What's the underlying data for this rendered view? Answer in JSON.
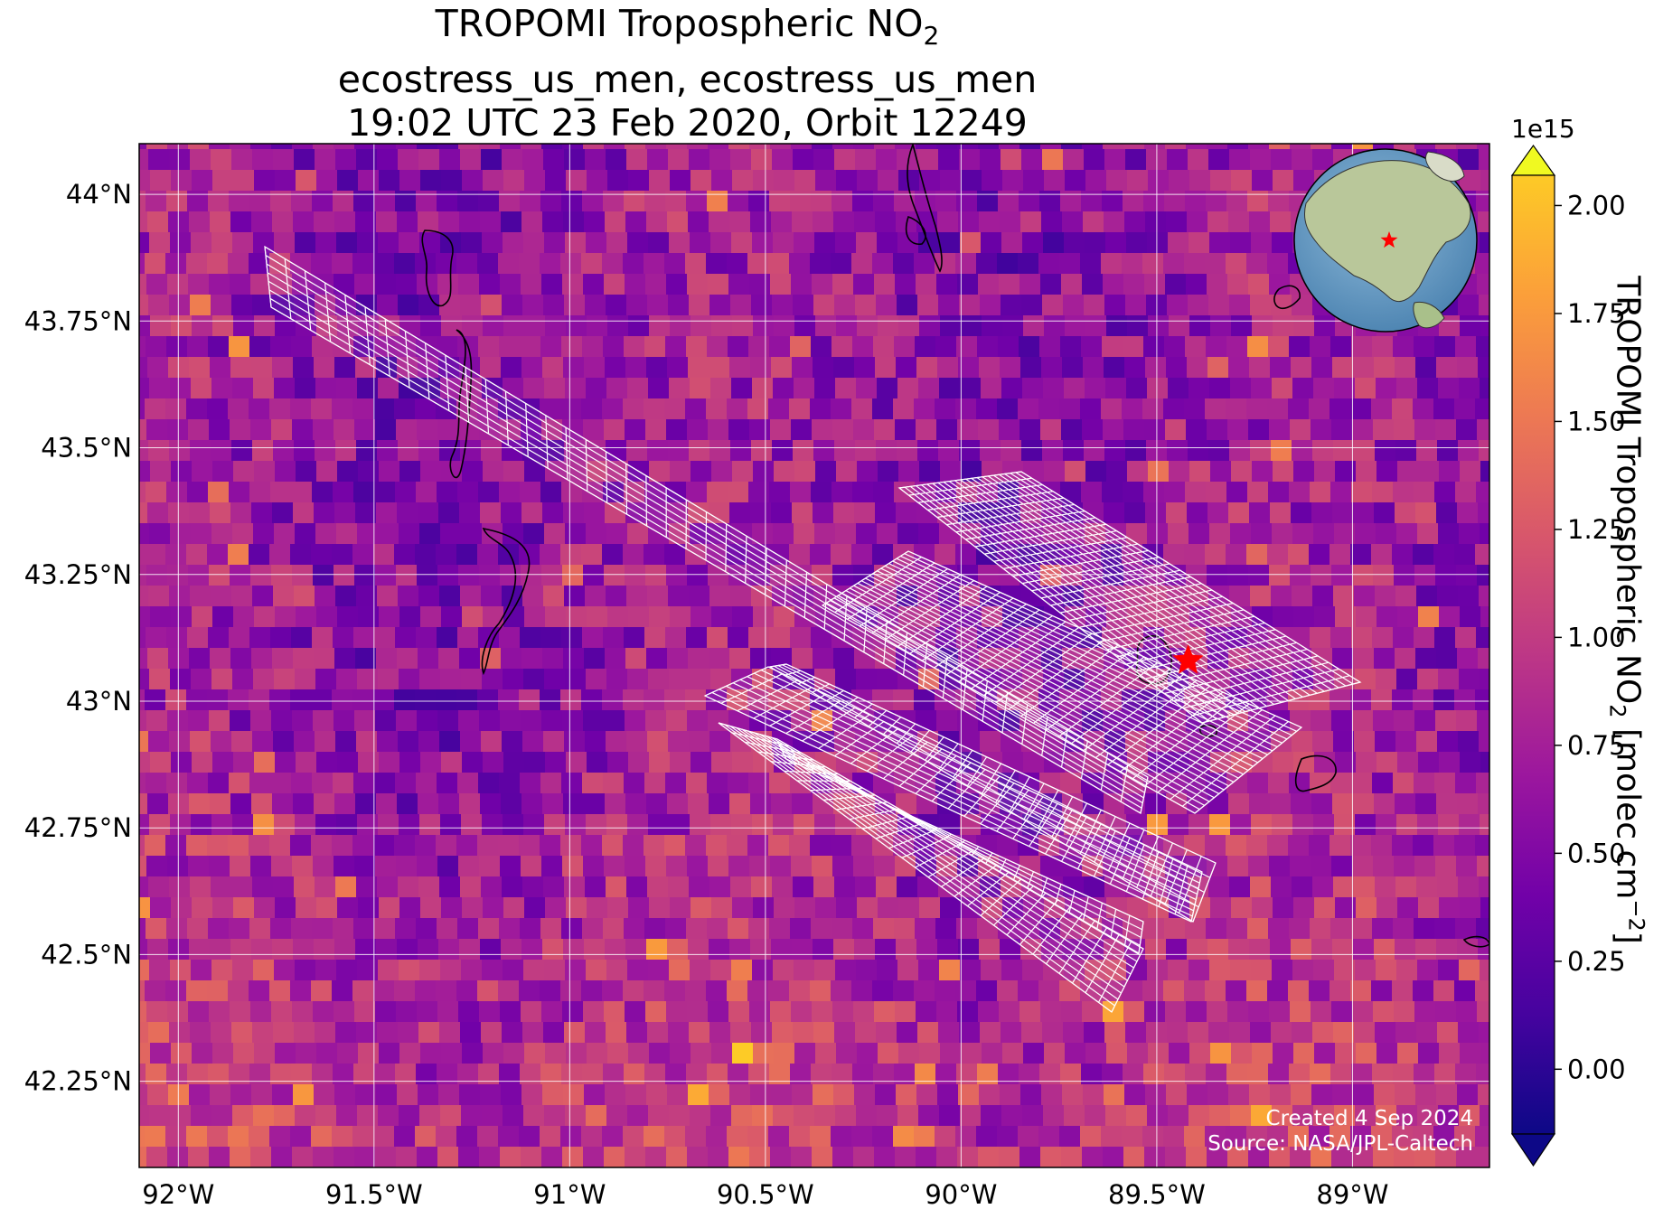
{
  "title": {
    "line1_text": "TROPOMI Tropospheric NO",
    "line1_sub": "2",
    "line2": "ecostress_us_men, ecostress_us_men",
    "line3": "19:02 UTC 23 Feb 2020, Orbit 12249"
  },
  "map": {
    "lon_range": [
      -92.1,
      -88.65
    ],
    "lat_range": [
      42.08,
      44.1
    ],
    "gridline_color": "#ffffff",
    "grid": true,
    "x_ticks": [
      {
        "value": -92.0,
        "label": "92°W"
      },
      {
        "value": -91.5,
        "label": "91.5°W"
      },
      {
        "value": -91.0,
        "label": "91°W"
      },
      {
        "value": -90.5,
        "label": "90.5°W"
      },
      {
        "value": -90.0,
        "label": "90°W"
      },
      {
        "value": -89.5,
        "label": "89.5°W"
      },
      {
        "value": -89.0,
        "label": "89°W"
      }
    ],
    "y_ticks": [
      {
        "value": 44.0,
        "label": "44°N"
      },
      {
        "value": 43.75,
        "label": "43.75°N"
      },
      {
        "value": 43.5,
        "label": "43.5°N"
      },
      {
        "value": 43.25,
        "label": "43.25°N"
      },
      {
        "value": 43.0,
        "label": "43°N"
      },
      {
        "value": 42.75,
        "label": "42.75°N"
      },
      {
        "value": 42.5,
        "label": "42.5°N"
      },
      {
        "value": 42.25,
        "label": "42.25°N"
      }
    ],
    "site_marker": {
      "lon": -89.42,
      "lat": 43.08,
      "color": "#ff0000",
      "icon": "star-icon"
    },
    "inset_globe": {
      "icon": "globe-icon",
      "ocean_color": "#6b9fc7",
      "land_color": "#b9c79a"
    },
    "swath_outline_color": "#ffffff",
    "colormap": "plasma"
  },
  "colorbar": {
    "label_main": "TROPOMI Tropospheric NO",
    "label_sub": "2",
    "label_units": " [molec cm",
    "label_exp": "−2",
    "label_close": "]",
    "exponent": "1e15",
    "range": [
      -0.15,
      2.07
    ],
    "extend": "both",
    "ticks": [
      {
        "value": 0.0,
        "label": "0.00"
      },
      {
        "value": 0.25,
        "label": "0.25"
      },
      {
        "value": 0.5,
        "label": "0.50"
      },
      {
        "value": 0.75,
        "label": "0.75"
      },
      {
        "value": 1.0,
        "label": "1.00"
      },
      {
        "value": 1.25,
        "label": "1.25"
      },
      {
        "value": 1.5,
        "label": "1.50"
      },
      {
        "value": 1.75,
        "label": "1.75"
      },
      {
        "value": 2.0,
        "label": "2.00"
      }
    ]
  },
  "credits": {
    "created": "Created 4 Sep 2024",
    "source": "Source: NASA/JPL-Caltech"
  }
}
